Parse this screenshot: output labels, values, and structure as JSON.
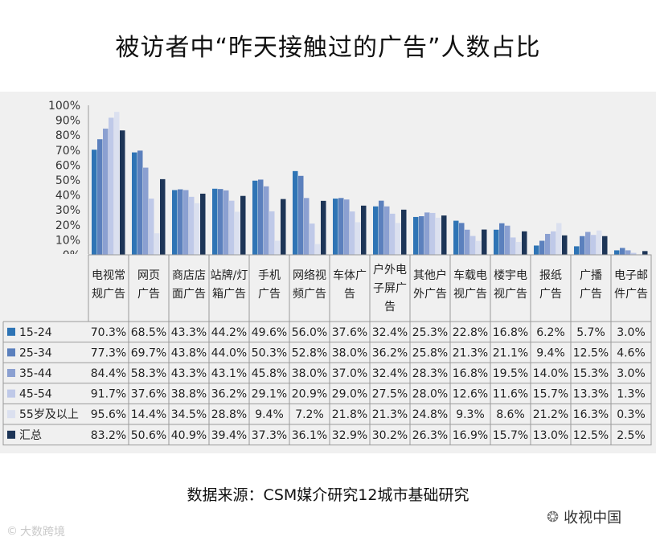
{
  "title": "被访者中“昨天接触过的广告”人数占比",
  "source": "数据来源：CSM媒介研究12城市基础研究",
  "watermark_left": "大数跨境",
  "watermark_right": "收视中国",
  "icons": {
    "left": "copyright-icon",
    "right": "wechat-icon"
  },
  "colors": {
    "15-24": "#2e74b5",
    "25-34": "#5b80bd",
    "35-44": "#8ba0d1",
    "45-54": "#bfc9e8",
    "55plus": "#dbe0ef",
    "total": "#1d3557"
  },
  "chart_data": {
    "type": "bar",
    "title": "被访者中“昨天接触过的广告”人数占比",
    "ylim": [
      0,
      100
    ],
    "y_ticks": [
      "0%",
      "10%",
      "20%",
      "30%",
      "40%",
      "50%",
      "60%",
      "70%",
      "80%",
      "90%",
      "100%"
    ],
    "grid": false,
    "legend": "bottom-left, in data table",
    "categories": [
      [
        "电视常",
        "规广告"
      ],
      [
        "网页",
        "广告"
      ],
      [
        "商店店",
        "面广告"
      ],
      [
        "站牌/灯",
        "箱广告"
      ],
      [
        "手机",
        "广告"
      ],
      [
        "网络视",
        "频广告"
      ],
      [
        "车体广",
        "告"
      ],
      [
        "户外电",
        "子屏广",
        "告"
      ],
      [
        "其他户",
        "外广告"
      ],
      [
        "车载电",
        "视广告"
      ],
      [
        "楼宇电",
        "视广告"
      ],
      [
        "报纸",
        "广告"
      ],
      [
        "广播",
        "广告"
      ],
      [
        "电子邮",
        "件广告"
      ]
    ],
    "series": [
      {
        "name": "15-24",
        "color": "#2e74b5",
        "values": [
          70.3,
          68.5,
          43.3,
          44.2,
          49.6,
          56.0,
          37.6,
          32.4,
          25.3,
          22.8,
          16.8,
          6.2,
          5.7,
          3.0
        ],
        "labels": [
          "70.3%",
          "68.5%",
          "43.3%",
          "44.2%",
          "49.6%",
          "56.0%",
          "37.6%",
          "32.4%",
          "25.3%",
          "22.8%",
          "16.8%",
          "6.2%",
          "5.7%",
          "3.0%"
        ]
      },
      {
        "name": "25-34",
        "color": "#5b80bd",
        "values": [
          77.3,
          69.7,
          43.8,
          44.0,
          50.3,
          52.8,
          38.0,
          36.2,
          25.8,
          21.3,
          21.1,
          9.4,
          12.5,
          4.6
        ],
        "labels": [
          "77.3%",
          "69.7%",
          "43.8%",
          "44.0%",
          "50.3%",
          "52.8%",
          "38.0%",
          "36.2%",
          "25.8%",
          "21.3%",
          "21.1%",
          "9.4%",
          "12.5%",
          "4.6%"
        ]
      },
      {
        "name": "35-44",
        "color": "#8ba0d1",
        "values": [
          84.4,
          58.3,
          43.3,
          43.1,
          45.8,
          38.0,
          37.0,
          32.4,
          28.3,
          16.8,
          19.5,
          14.0,
          15.3,
          3.0
        ],
        "labels": [
          "84.4%",
          "58.3%",
          "43.3%",
          "43.1%",
          "45.8%",
          "38.0%",
          "37.0%",
          "32.4%",
          "28.3%",
          "16.8%",
          "19.5%",
          "14.0%",
          "15.3%",
          "3.0%"
        ]
      },
      {
        "name": "45-54",
        "color": "#bfc9e8",
        "values": [
          91.7,
          37.6,
          38.8,
          36.2,
          29.1,
          20.9,
          29.0,
          27.5,
          28.0,
          12.6,
          11.6,
          15.7,
          13.3,
          1.3
        ],
        "labels": [
          "91.7%",
          "37.6%",
          "38.8%",
          "36.2%",
          "29.1%",
          "20.9%",
          "29.0%",
          "27.5%",
          "28.0%",
          "12.6%",
          "11.6%",
          "15.7%",
          "13.3%",
          "1.3%"
        ]
      },
      {
        "name": "55岁及以上",
        "color": "#dbe0ef",
        "values": [
          95.6,
          14.4,
          34.5,
          28.8,
          9.4,
          7.2,
          21.8,
          21.3,
          24.8,
          9.3,
          8.6,
          21.2,
          16.3,
          0.3
        ],
        "labels": [
          "95.6%",
          "14.4%",
          "34.5%",
          "28.8%",
          "9.4%",
          "7.2%",
          "21.8%",
          "21.3%",
          "24.8%",
          "9.3%",
          "8.6%",
          "21.2%",
          "16.3%",
          "0.3%"
        ]
      },
      {
        "name": "汇总",
        "color": "#1d3557",
        "values": [
          83.2,
          50.6,
          40.9,
          39.4,
          37.3,
          36.1,
          32.9,
          30.2,
          26.3,
          16.9,
          15.7,
          13.0,
          12.5,
          2.5
        ],
        "labels": [
          "83.2%",
          "50.6%",
          "40.9%",
          "39.4%",
          "37.3%",
          "36.1%",
          "32.9%",
          "30.2%",
          "26.3%",
          "16.9%",
          "15.7%",
          "13.0%",
          "12.5%",
          "2.5%"
        ]
      }
    ]
  }
}
